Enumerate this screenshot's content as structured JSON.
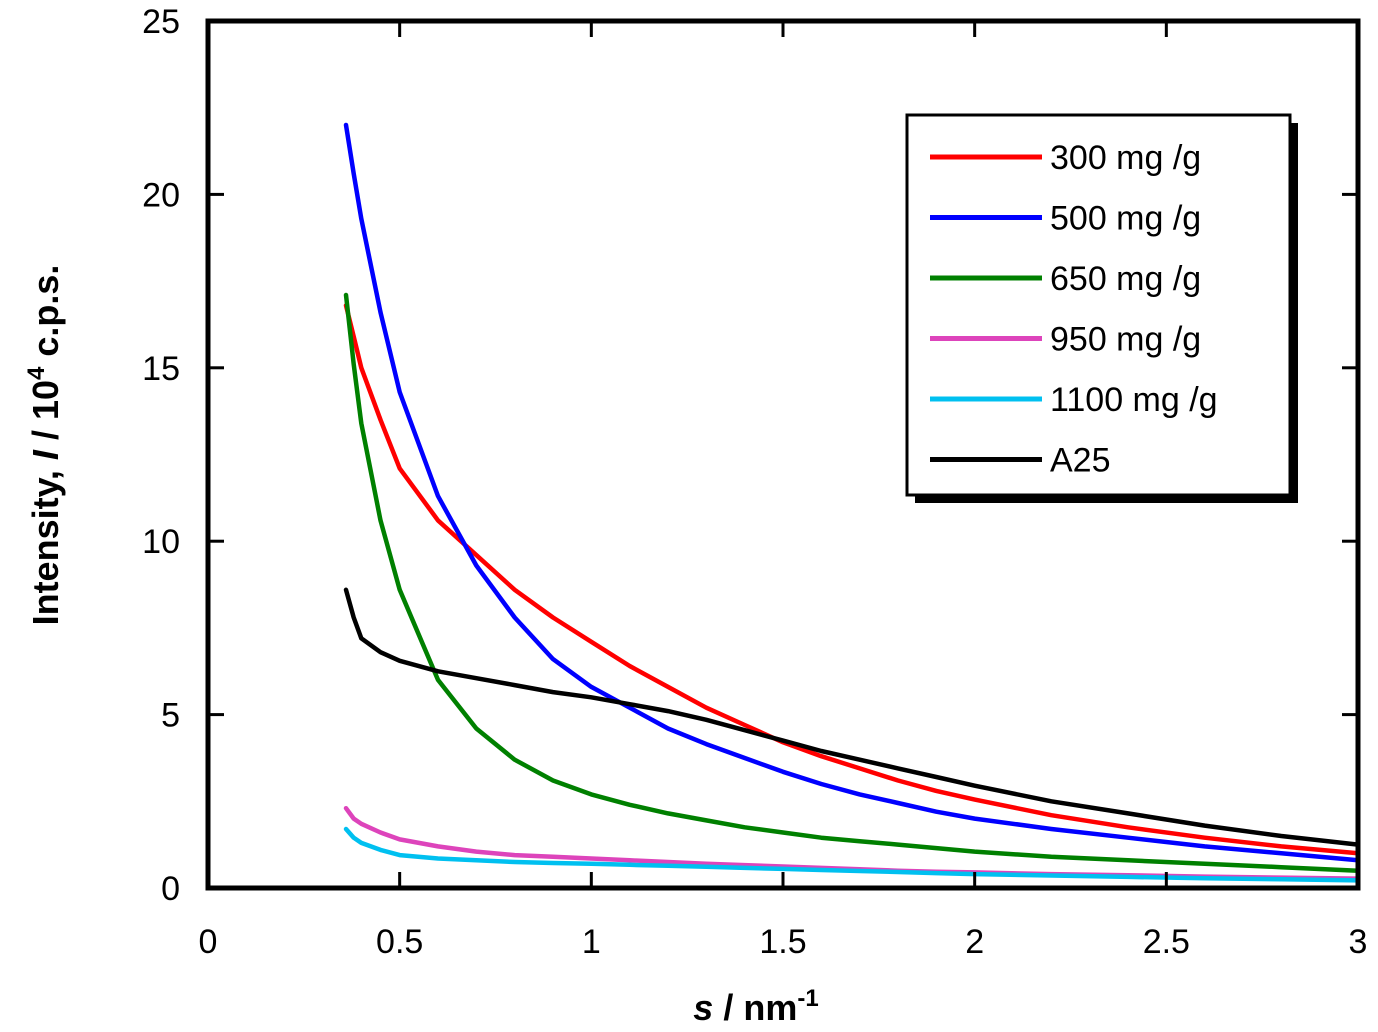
{
  "chart_data": {
    "type": "line",
    "title": "",
    "xlabel": {
      "italic": "s",
      "text": " / nm",
      "sup": "-1"
    },
    "ylabel": {
      "text1": "Intensity, ",
      "italic": "I",
      "text2": " / 10",
      "sup": "4",
      "text3": " c.p.s."
    },
    "xlim": [
      0,
      3
    ],
    "ylim": [
      0,
      25
    ],
    "xticks": [
      0,
      0.5,
      1,
      1.5,
      2,
      2.5,
      3
    ],
    "xtick_labels": [
      "0",
      "0.5",
      "1",
      "1.5",
      "2",
      "2.5",
      "3"
    ],
    "yticks": [
      0,
      5,
      10,
      15,
      20,
      25
    ],
    "ytick_labels": [
      "0",
      "5",
      "10",
      "15",
      "20",
      "25"
    ],
    "grid": false,
    "legend_position": "top-right",
    "x": [
      0.36,
      0.38,
      0.4,
      0.45,
      0.5,
      0.6,
      0.7,
      0.8,
      0.9,
      1.0,
      1.1,
      1.2,
      1.3,
      1.4,
      1.5,
      1.6,
      1.7,
      1.8,
      1.9,
      2.0,
      2.2,
      2.4,
      2.6,
      2.8,
      3.0
    ],
    "series": [
      {
        "name": "300 mg /g",
        "color": "#ff0000",
        "values": [
          16.8,
          15.9,
          15.0,
          13.5,
          12.1,
          10.6,
          9.6,
          8.6,
          7.8,
          7.1,
          6.4,
          5.8,
          5.2,
          4.7,
          4.2,
          3.8,
          3.45,
          3.1,
          2.8,
          2.55,
          2.1,
          1.75,
          1.45,
          1.2,
          1.0
        ]
      },
      {
        "name": "500 mg /g",
        "color": "#0000ff",
        "values": [
          22.0,
          20.6,
          19.3,
          16.6,
          14.3,
          11.3,
          9.3,
          7.8,
          6.6,
          5.8,
          5.2,
          4.6,
          4.15,
          3.75,
          3.35,
          3.0,
          2.7,
          2.45,
          2.2,
          2.0,
          1.7,
          1.45,
          1.2,
          1.0,
          0.8
        ]
      },
      {
        "name": "650 mg /g",
        "color": "#008000",
        "values": [
          17.1,
          15.1,
          13.4,
          10.6,
          8.6,
          6.0,
          4.6,
          3.7,
          3.1,
          2.7,
          2.4,
          2.15,
          1.95,
          1.75,
          1.6,
          1.45,
          1.35,
          1.25,
          1.15,
          1.05,
          0.9,
          0.8,
          0.7,
          0.6,
          0.5
        ]
      },
      {
        "name": "950 mg /g",
        "color": "#dd44bb",
        "values": [
          2.3,
          2.0,
          1.85,
          1.6,
          1.4,
          1.2,
          1.05,
          0.95,
          0.9,
          0.85,
          0.8,
          0.75,
          0.7,
          0.66,
          0.62,
          0.58,
          0.54,
          0.5,
          0.47,
          0.45,
          0.4,
          0.37,
          0.33,
          0.3,
          0.27
        ]
      },
      {
        "name": "1100 mg /g",
        "color": "#00c0f0",
        "values": [
          1.7,
          1.45,
          1.3,
          1.1,
          0.95,
          0.85,
          0.8,
          0.75,
          0.72,
          0.7,
          0.67,
          0.64,
          0.61,
          0.58,
          0.55,
          0.52,
          0.49,
          0.46,
          0.43,
          0.4,
          0.36,
          0.32,
          0.28,
          0.25,
          0.22
        ]
      },
      {
        "name": "A25",
        "color": "#000000",
        "values": [
          8.6,
          7.8,
          7.2,
          6.8,
          6.55,
          6.25,
          6.05,
          5.85,
          5.65,
          5.5,
          5.3,
          5.1,
          4.85,
          4.55,
          4.25,
          3.95,
          3.7,
          3.45,
          3.2,
          2.95,
          2.5,
          2.15,
          1.8,
          1.5,
          1.25
        ]
      }
    ]
  }
}
